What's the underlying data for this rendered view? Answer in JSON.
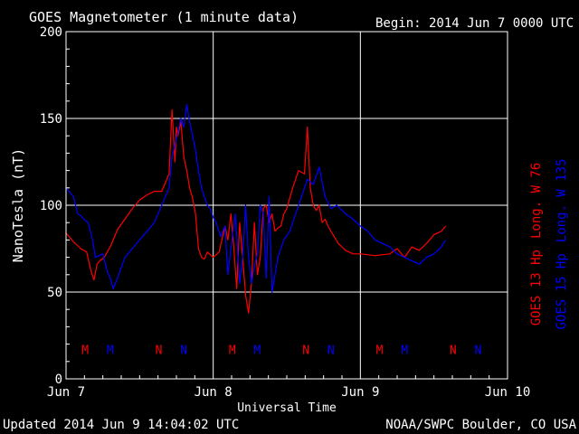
{
  "header": {
    "title": "GOES Magnetometer (1 minute data)",
    "begin_label": "Begin:",
    "begin_value": "2014 Jun 7 0000 UTC"
  },
  "footer": {
    "updated": "Updated 2014 Jun  9 14:04:02 UTC",
    "credit": "NOAA/SWPC Boulder, CO USA"
  },
  "colors": {
    "background": "#000000",
    "axes": "#ffffff",
    "goes13": "#ff0000",
    "goes15": "#0000ff"
  },
  "chart_data": {
    "type": "line",
    "title": "GOES Magnetometer (1 minute data)",
    "xlabel": "Universal Time",
    "ylabel": "NanoTesla (nT)",
    "ylim": [
      0,
      200
    ],
    "xlim": [
      0,
      3
    ],
    "grid": true,
    "x_ticks": [
      {
        "value": 0,
        "label": "Jun 7"
      },
      {
        "value": 1,
        "label": "Jun 8"
      },
      {
        "value": 2,
        "label": "Jun 9"
      },
      {
        "value": 3,
        "label": "Jun 10"
      }
    ],
    "y_ticks": [
      0,
      50,
      100,
      150,
      200
    ],
    "series": [
      {
        "name": "GOES 13 Hp",
        "longitude_label": "Long. W 76",
        "color": "#ff0000",
        "x": [
          0.0,
          0.05,
          0.1,
          0.14,
          0.17,
          0.19,
          0.21,
          0.23,
          0.26,
          0.3,
          0.35,
          0.4,
          0.45,
          0.5,
          0.55,
          0.6,
          0.65,
          0.7,
          0.72,
          0.74,
          0.75,
          0.76,
          0.78,
          0.8,
          0.82,
          0.84,
          0.86,
          0.88,
          0.9,
          0.92,
          0.94,
          0.96,
          1.0,
          1.04,
          1.08,
          1.1,
          1.12,
          1.14,
          1.16,
          1.18,
          1.2,
          1.22,
          1.24,
          1.26,
          1.28,
          1.3,
          1.32,
          1.34,
          1.36,
          1.38,
          1.4,
          1.42,
          1.44,
          1.46,
          1.48,
          1.5,
          1.54,
          1.58,
          1.62,
          1.64,
          1.66,
          1.68,
          1.7,
          1.72,
          1.74,
          1.76,
          1.78,
          1.8,
          1.85,
          1.9,
          1.95,
          2.0,
          2.1,
          2.2,
          2.25,
          2.3,
          2.35,
          2.4,
          2.45,
          2.5,
          2.55,
          2.58
        ],
        "y": [
          84,
          79,
          75,
          73,
          62,
          57,
          66,
          68,
          70,
          76,
          86,
          92,
          98,
          103,
          106,
          108,
          108,
          118,
          155,
          125,
          145,
          140,
          148,
          128,
          120,
          110,
          104,
          95,
          75,
          70,
          69,
          73,
          70,
          73,
          88,
          80,
          95,
          76,
          52,
          90,
          70,
          48,
          38,
          55,
          90,
          60,
          70,
          98,
          100,
          90,
          95,
          85,
          87,
          88,
          95,
          98,
          110,
          120,
          118,
          145,
          110,
          100,
          97,
          100,
          90,
          92,
          88,
          85,
          78,
          74,
          72,
          72,
          71,
          72,
          75,
          70,
          76,
          74,
          78,
          83,
          85,
          88
        ]
      },
      {
        "name": "GOES 15 Hp",
        "longitude_label": "Long. W 135",
        "color": "#0000ff",
        "x": [
          0.0,
          0.05,
          0.08,
          0.1,
          0.12,
          0.15,
          0.18,
          0.2,
          0.25,
          0.28,
          0.3,
          0.32,
          0.35,
          0.4,
          0.45,
          0.5,
          0.55,
          0.6,
          0.65,
          0.7,
          0.72,
          0.74,
          0.76,
          0.78,
          0.8,
          0.82,
          0.84,
          0.86,
          0.88,
          0.9,
          0.92,
          0.94,
          0.96,
          0.98,
          1.0,
          1.02,
          1.05,
          1.08,
          1.1,
          1.12,
          1.15,
          1.18,
          1.2,
          1.22,
          1.24,
          1.26,
          1.28,
          1.3,
          1.32,
          1.34,
          1.36,
          1.38,
          1.4,
          1.44,
          1.48,
          1.52,
          1.56,
          1.6,
          1.64,
          1.68,
          1.72,
          1.76,
          1.8,
          1.84,
          1.9,
          1.95,
          2.0,
          2.05,
          2.1,
          2.15,
          2.2,
          2.25,
          2.3,
          2.35,
          2.4,
          2.45,
          2.5,
          2.55,
          2.58
        ],
        "y": [
          110,
          105,
          95,
          94,
          92,
          90,
          80,
          70,
          72,
          62,
          58,
          52,
          58,
          70,
          75,
          80,
          85,
          90,
          100,
          110,
          128,
          135,
          142,
          150,
          145,
          158,
          148,
          140,
          132,
          120,
          110,
          105,
          100,
          98,
          93,
          90,
          82,
          88,
          60,
          75,
          95,
          55,
          70,
          100,
          70,
          55,
          65,
          72,
          100,
          95,
          58,
          105,
          50,
          70,
          80,
          85,
          95,
          105,
          115,
          112,
          122,
          105,
          98,
          100,
          95,
          92,
          88,
          85,
          80,
          78,
          76,
          72,
          70,
          68,
          66,
          70,
          72,
          76,
          80
        ]
      }
    ],
    "annotations": [
      {
        "text": "M",
        "x": 0.13,
        "series": "GOES 13 Hp"
      },
      {
        "text": "M",
        "x": 0.3,
        "series": "GOES 15 Hp"
      },
      {
        "text": "N",
        "x": 0.63,
        "series": "GOES 13 Hp"
      },
      {
        "text": "N",
        "x": 0.8,
        "series": "GOES 15 Hp"
      },
      {
        "text": "M",
        "x": 1.13,
        "series": "GOES 13 Hp"
      },
      {
        "text": "M",
        "x": 1.3,
        "series": "GOES 15 Hp"
      },
      {
        "text": "N",
        "x": 1.63,
        "series": "GOES 13 Hp"
      },
      {
        "text": "N",
        "x": 1.8,
        "series": "GOES 15 Hp"
      },
      {
        "text": "M",
        "x": 2.13,
        "series": "GOES 13 Hp"
      },
      {
        "text": "M",
        "x": 2.3,
        "series": "GOES 15 Hp"
      },
      {
        "text": "N",
        "x": 2.63,
        "series": "GOES 13 Hp"
      },
      {
        "text": "N",
        "x": 2.8,
        "series": "GOES 15 Hp"
      }
    ],
    "annotation_y": 17
  }
}
